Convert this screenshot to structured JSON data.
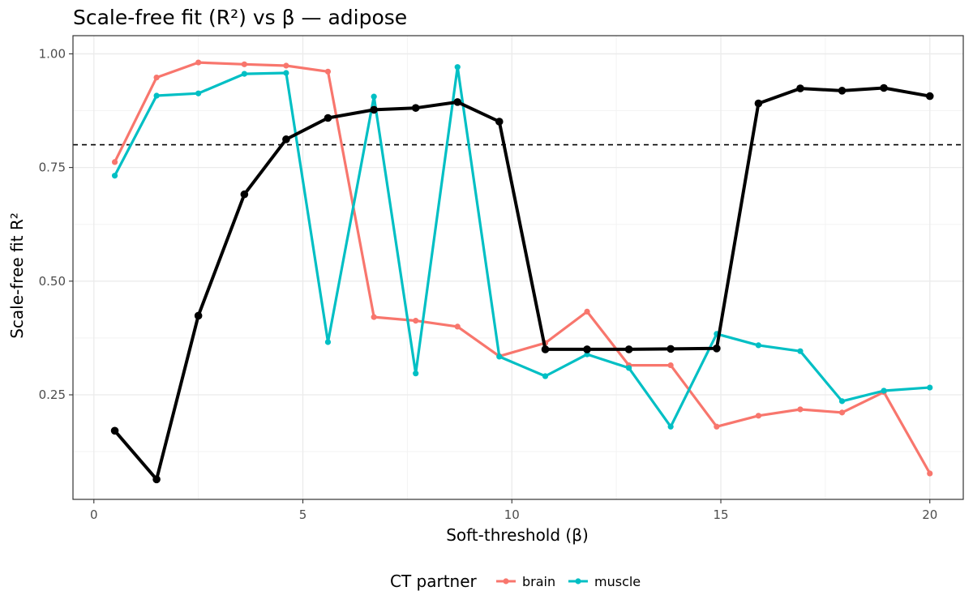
{
  "chart_data": {
    "type": "line",
    "title": "Scale-free fit (R²) vs β — adipose",
    "xlabel": "Soft-threshold (β)",
    "ylabel": "Scale-free fit R²",
    "xlim": [
      -0.5,
      20.8
    ],
    "ylim": [
      0.02,
      1.04
    ],
    "x_ticks": [
      0,
      5,
      10,
      15,
      20
    ],
    "y_ticks": [
      0.25,
      0.5,
      0.75,
      1.0
    ],
    "x_tick_labels": [
      "0",
      "5",
      "10",
      "15",
      "20"
    ],
    "y_tick_labels": [
      "0.25",
      "0.50",
      "0.75",
      "1.00"
    ],
    "grid": true,
    "threshold_line": 0.8,
    "legend": {
      "title": "CT partner",
      "position": "bottom"
    },
    "series": [
      {
        "name": "",
        "key": "main",
        "color": "#000000",
        "x": [
          0.5,
          1.5,
          2.5,
          3.6,
          4.6,
          5.6,
          6.7,
          7.7,
          8.7,
          9.7,
          10.8,
          11.8,
          12.8,
          13.8,
          14.9,
          15.9,
          16.9,
          17.9,
          18.9,
          20.0
        ],
        "y": [
          0.171,
          0.064,
          0.424,
          0.691,
          0.812,
          0.859,
          0.877,
          0.881,
          0.894,
          0.851,
          0.35,
          0.35,
          0.35,
          0.351,
          0.352,
          0.891,
          0.924,
          0.919,
          0.925,
          0.907
        ]
      },
      {
        "name": "brain",
        "key": "brain",
        "color": "#F8766D",
        "x": [
          0.5,
          1.5,
          2.5,
          3.6,
          4.6,
          5.6,
          6.7,
          7.7,
          8.7,
          9.7,
          10.8,
          11.8,
          12.8,
          13.8,
          14.9,
          15.9,
          16.9,
          17.9,
          18.9,
          20.0
        ],
        "y": [
          0.762,
          0.948,
          0.981,
          0.977,
          0.974,
          0.961,
          0.421,
          0.413,
          0.4,
          0.335,
          0.364,
          0.433,
          0.315,
          0.315,
          0.18,
          0.204,
          0.218,
          0.211,
          0.256,
          0.077
        ]
      },
      {
        "name": "muscle",
        "key": "muscle",
        "color": "#00BFC4",
        "x": [
          0.5,
          1.5,
          2.5,
          3.6,
          4.6,
          5.6,
          6.7,
          7.7,
          8.7,
          9.7,
          10.8,
          11.8,
          12.8,
          13.8,
          14.9,
          15.9,
          16.9,
          17.9,
          18.9,
          20.0
        ],
        "y": [
          0.732,
          0.908,
          0.913,
          0.956,
          0.958,
          0.366,
          0.906,
          0.297,
          0.971,
          0.334,
          0.291,
          0.339,
          0.309,
          0.18,
          0.384,
          0.359,
          0.346,
          0.236,
          0.259,
          0.266
        ]
      }
    ]
  }
}
